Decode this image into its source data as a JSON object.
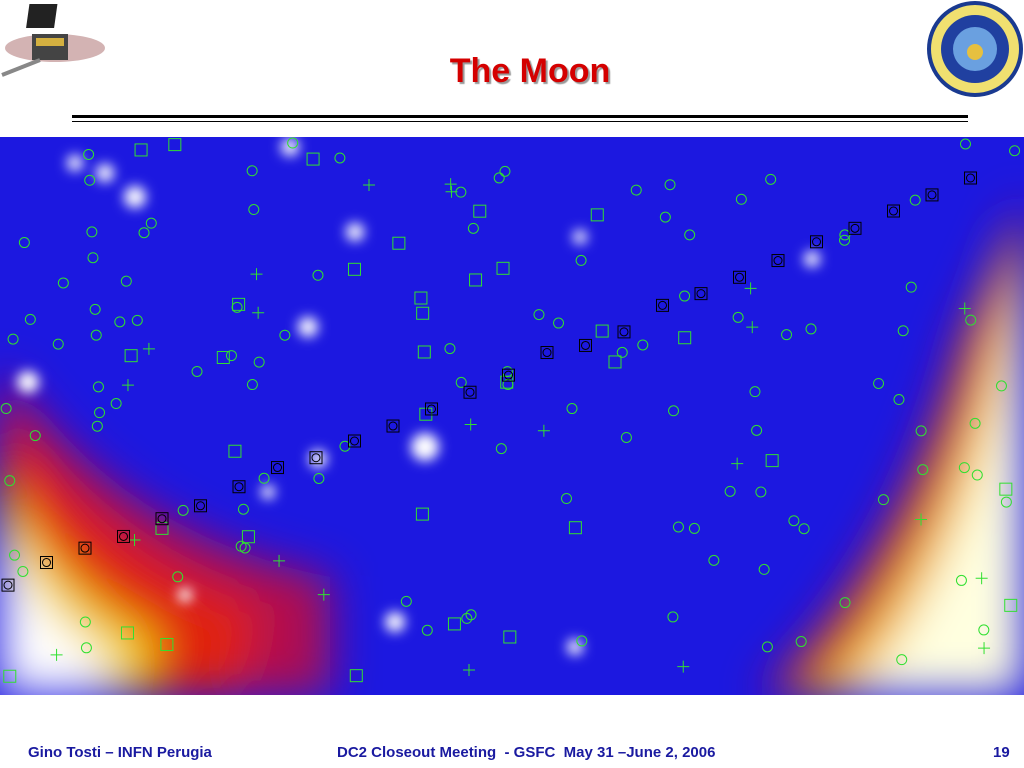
{
  "header": {
    "title": "The Moon"
  },
  "footer": {
    "left": "Gino Tosti – INFN Perugia",
    "center": "DC2 Closeout Meeting  - GSFC  May 31 –June 2, 2006",
    "page": "19"
  }
}
